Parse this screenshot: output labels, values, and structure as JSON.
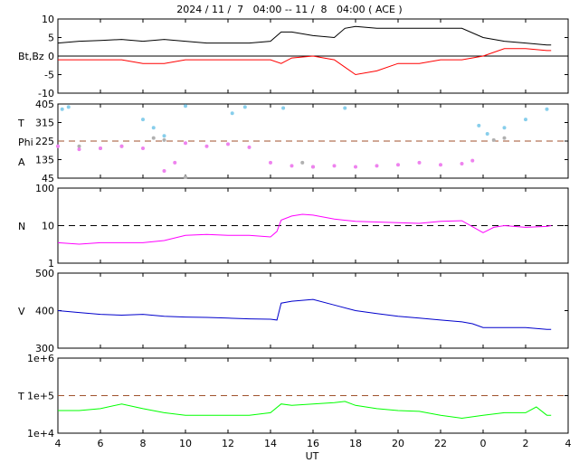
{
  "title": "2024 / 11 /  7   04:00 -- 11 /  8   04:00 ( ACE )",
  "x_axis_label": "UT",
  "colors": {
    "bt": "#000000",
    "bz": "#ff0000",
    "theta": "#87ceeb",
    "phi_gray": "#b0b0b0",
    "phi_violet": "#ee82ee",
    "density": "#ff00ff",
    "speed": "#0000cc",
    "temperature": "#00ff00",
    "dashed_ref": "#a0522d"
  },
  "chart_data": [
    {
      "type": "line",
      "panel": "bt_bz",
      "ylabel": "Bt,Bz",
      "ylim": [
        -10,
        10
      ],
      "yticks": [
        "10",
        "5",
        "0",
        "-5",
        "-10"
      ],
      "xticks": [
        "4",
        "6",
        "8",
        "10",
        "12",
        "14",
        "16",
        "18",
        "20",
        "22",
        "0",
        "2",
        "4"
      ],
      "xlim_hours": [
        4,
        28
      ],
      "zero_line": 0,
      "series": [
        {
          "key": "bt",
          "x": [
            4,
            5,
            6,
            7,
            8,
            9,
            10,
            11,
            12,
            13,
            14,
            14.5,
            15,
            16,
            17,
            17.5,
            18,
            19,
            20,
            21,
            22,
            23,
            24,
            25,
            26,
            27,
            27.2
          ],
          "values": [
            3.5,
            4,
            4.2,
            4.5,
            4,
            4.5,
            4,
            3.5,
            3.5,
            3.5,
            4,
            6.5,
            6.5,
            5.5,
            5,
            7.5,
            8,
            7.5,
            7.5,
            7.5,
            7.5,
            7.5,
            5,
            4,
            3.5,
            3,
            3
          ]
        },
        {
          "key": "bz",
          "x": [
            4,
            5,
            6,
            7,
            8,
            9,
            10,
            11,
            12,
            13,
            14,
            14.5,
            15,
            16,
            17,
            17.5,
            18,
            19,
            20,
            21,
            22,
            23,
            24,
            25,
            26,
            27,
            27.2
          ],
          "values": [
            -1,
            -1,
            -1,
            -1,
            -2,
            -2,
            -1,
            -1,
            -1,
            -1,
            -1,
            -2,
            -0.5,
            0,
            -1,
            -3,
            -5,
            -4,
            -2,
            -2,
            -1,
            -1,
            0,
            2,
            2,
            1.5,
            1.5
          ]
        }
      ]
    },
    {
      "type": "scatter",
      "panel": "theta_phi",
      "ylabels": [
        "T",
        "Phi",
        "A"
      ],
      "ylim": [
        45,
        405
      ],
      "yticks": [
        "405",
        "315",
        "225",
        "135",
        "45"
      ],
      "ref_line": 225,
      "series": [
        {
          "key": "theta",
          "x": [
            4.2,
            4.5,
            8.0,
            8.5,
            9.0,
            10.0,
            12.2,
            12.8,
            14.6,
            17.5,
            23.8,
            24.2,
            25.0,
            26.0,
            27.0
          ],
          "values": [
            380,
            390,
            330,
            290,
            250,
            395,
            360,
            390,
            385,
            385,
            300,
            260,
            290,
            330,
            380
          ]
        },
        {
          "key": "phi_gray",
          "x": [
            5.0,
            6.0,
            7.0,
            8.5,
            9.0,
            10.0,
            15.5,
            16.0,
            24.5,
            25.0
          ],
          "values": [
            200,
            190,
            200,
            240,
            230,
            50,
            120,
            100,
            230,
            240
          ]
        },
        {
          "key": "phi_violet",
          "x": [
            4,
            5,
            6,
            7,
            8,
            9,
            9.5,
            10,
            11,
            12,
            13,
            14,
            15,
            16,
            17,
            18,
            19,
            20,
            21,
            22,
            23,
            23.5
          ],
          "values": [
            200,
            185,
            190,
            200,
            190,
            80,
            120,
            215,
            200,
            210,
            195,
            120,
            105,
            100,
            105,
            100,
            105,
            110,
            120,
            110,
            115,
            130
          ]
        }
      ]
    },
    {
      "type": "line",
      "panel": "density",
      "ylabel": "N",
      "yscale": "log",
      "ylim": [
        1,
        100
      ],
      "yticks": [
        "100",
        "10",
        "1"
      ],
      "ref_line": 10,
      "series": [
        {
          "key": "density",
          "x": [
            4,
            5,
            6,
            7,
            8,
            9,
            10,
            11,
            12,
            13,
            14,
            14.3,
            14.5,
            15,
            15.5,
            16,
            17,
            18,
            19,
            20,
            21,
            22,
            23,
            24,
            24.5,
            25,
            26,
            27,
            27.2
          ],
          "values": [
            3.5,
            3.2,
            3.5,
            3.5,
            3.5,
            4.0,
            5.5,
            5.8,
            5.5,
            5.5,
            5.0,
            7,
            14,
            18,
            20,
            19,
            15,
            13,
            12.5,
            12,
            11.5,
            13,
            13.5,
            6.5,
            9,
            10,
            9,
            9.5,
            10
          ]
        }
      ]
    },
    {
      "type": "line",
      "panel": "speed",
      "ylabel": "V",
      "ylim": [
        300,
        500
      ],
      "yticks": [
        "500",
        "400",
        "300"
      ],
      "series": [
        {
          "key": "speed",
          "x": [
            4,
            5,
            6,
            7,
            8,
            9,
            10,
            11,
            12,
            13,
            14,
            14.3,
            14.5,
            15,
            16,
            17,
            18,
            19,
            20,
            21,
            22,
            23,
            23.5,
            24,
            25,
            26,
            27,
            27.2
          ],
          "values": [
            400,
            395,
            390,
            388,
            390,
            385,
            383,
            382,
            380,
            378,
            377,
            375,
            420,
            425,
            430,
            415,
            400,
            392,
            385,
            380,
            375,
            370,
            365,
            355,
            355,
            355,
            350,
            350
          ]
        }
      ]
    },
    {
      "type": "line",
      "panel": "temperature",
      "ylabel": "T",
      "yscale": "log",
      "ylim": [
        10000,
        1000000
      ],
      "yticks": [
        "1e+6",
        "1e+5",
        "1e+4"
      ],
      "ref_line": 100000,
      "series": [
        {
          "key": "temperature",
          "x": [
            4,
            5,
            6,
            7,
            8,
            9,
            10,
            11,
            12,
            13,
            14,
            14.5,
            15,
            16,
            17,
            17.5,
            18,
            19,
            20,
            21,
            22,
            23,
            24,
            25,
            26,
            26.5,
            27,
            27.2
          ],
          "values": [
            40000,
            40000,
            45000,
            60000,
            45000,
            35000,
            30000,
            30000,
            30000,
            30000,
            35000,
            60000,
            55000,
            60000,
            65000,
            70000,
            55000,
            45000,
            40000,
            38000,
            30000,
            25000,
            30000,
            35000,
            35000,
            50000,
            30000,
            30000
          ]
        }
      ]
    }
  ]
}
